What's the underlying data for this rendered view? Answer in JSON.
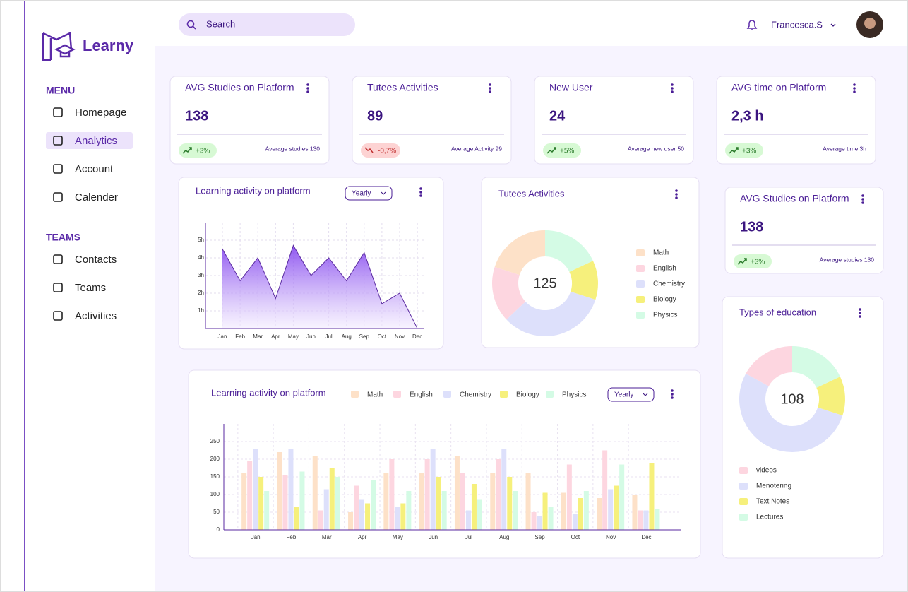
{
  "brand": "Learny",
  "search": "Search",
  "user": "Francesca.S",
  "menu": {
    "heading": "MENU",
    "items": [
      "Homepage",
      "Analytics",
      "Account",
      "Calender"
    ]
  },
  "teams": {
    "heading": "TEAMS",
    "items": [
      "Contacts",
      "Teams",
      "Activities"
    ]
  },
  "stat_cards": [
    {
      "title": "AVG Studies on Platform",
      "value": "138",
      "change": "+3%",
      "note": "Average studies 130"
    },
    {
      "title": "Tutees Activities",
      "value": "89",
      "change": "-0,7%",
      "note": "Average Activity 99"
    },
    {
      "title": "New User",
      "value": "24",
      "change": "+5%",
      "note": "Average new user 50"
    },
    {
      "title": "AVG time on Platform",
      "value": "2,3 h",
      "change": "+3%",
      "note": "Average time 3h"
    }
  ],
  "side_card": {
    "title": "AVG Studies on Platform",
    "value": "138",
    "change": "+3%",
    "note": "Average studies 130"
  },
  "chart_data": [
    {
      "type": "area",
      "title": "Learning activity on platform",
      "dropdown": "Yearly",
      "color": "#7c3aed",
      "grid": true,
      "categories": [
        "Jan",
        "Feb",
        "Mar",
        "Apr",
        "May",
        "Jun",
        "Jul",
        "Aug",
        "Sep",
        "Oct",
        "Nov",
        "Dec"
      ],
      "values": [
        4.5,
        2.7,
        4,
        1.7,
        4.7,
        3,
        4,
        2.7,
        4.3,
        1.4,
        2,
        0
      ],
      "ylim": [
        0,
        6
      ],
      "yticks": [
        {
          "value": 1,
          "label": "1h"
        },
        {
          "value": 2,
          "label": "2h"
        },
        {
          "value": 3,
          "label": "3h"
        },
        {
          "value": 4,
          "label": "4h"
        },
        {
          "value": 5,
          "label": "5h"
        }
      ]
    },
    {
      "type": "donut",
      "title": "Tutees Activities",
      "total": "125",
      "categories": [
        "Math",
        "English",
        "Chemistry",
        "Biology",
        "Physics"
      ],
      "values": [
        20,
        17,
        33,
        12,
        18
      ],
      "colors": [
        "#fde1c8",
        "#fdd6e0",
        "#dde0fb",
        "#f6f07c",
        "#d4fbe5"
      ]
    },
    {
      "type": "donut",
      "title": "Types of education",
      "total": "108",
      "categories": [
        "videos",
        "Menotering",
        "Text Notes",
        "Lectures"
      ],
      "values": [
        17,
        53,
        12,
        18
      ],
      "colors": [
        "#fdd6e0",
        "#dde0fb",
        "#f6f07c",
        "#d4fbe5"
      ]
    },
    {
      "type": "grouped_bar",
      "title": "Learning activity on platform",
      "dropdown": "Yearly",
      "grid": true,
      "categories": [
        "Jan",
        "Feb",
        "Mar",
        "Apr",
        "May",
        "Jun",
        "Jul",
        "Aug",
        "Sep",
        "Oct",
        "Nov",
        "Dec"
      ],
      "ylim": [
        0,
        300
      ],
      "yticks": [
        0,
        50,
        100,
        150,
        200,
        250
      ],
      "series": [
        {
          "name": "Math",
          "color": "#fde1c8",
          "values": [
            160,
            220,
            210,
            50,
            160,
            160,
            210,
            160,
            160,
            105,
            90,
            100
          ]
        },
        {
          "name": "English",
          "color": "#fdd6e0",
          "values": [
            195,
            155,
            55,
            125,
            200,
            200,
            160,
            200,
            50,
            185,
            225,
            55
          ]
        },
        {
          "name": "Chemistry",
          "color": "#dde0fb",
          "values": [
            230,
            230,
            115,
            85,
            65,
            230,
            55,
            230,
            40,
            45,
            115,
            55
          ]
        },
        {
          "name": "Biology",
          "color": "#f6f07c",
          "values": [
            150,
            65,
            175,
            75,
            75,
            150,
            130,
            150,
            105,
            90,
            125,
            190
          ]
        },
        {
          "name": "Physics",
          "color": "#d4fbe5",
          "values": [
            110,
            165,
            150,
            140,
            110,
            110,
            85,
            110,
            65,
            110,
            185,
            60
          ]
        }
      ]
    }
  ]
}
